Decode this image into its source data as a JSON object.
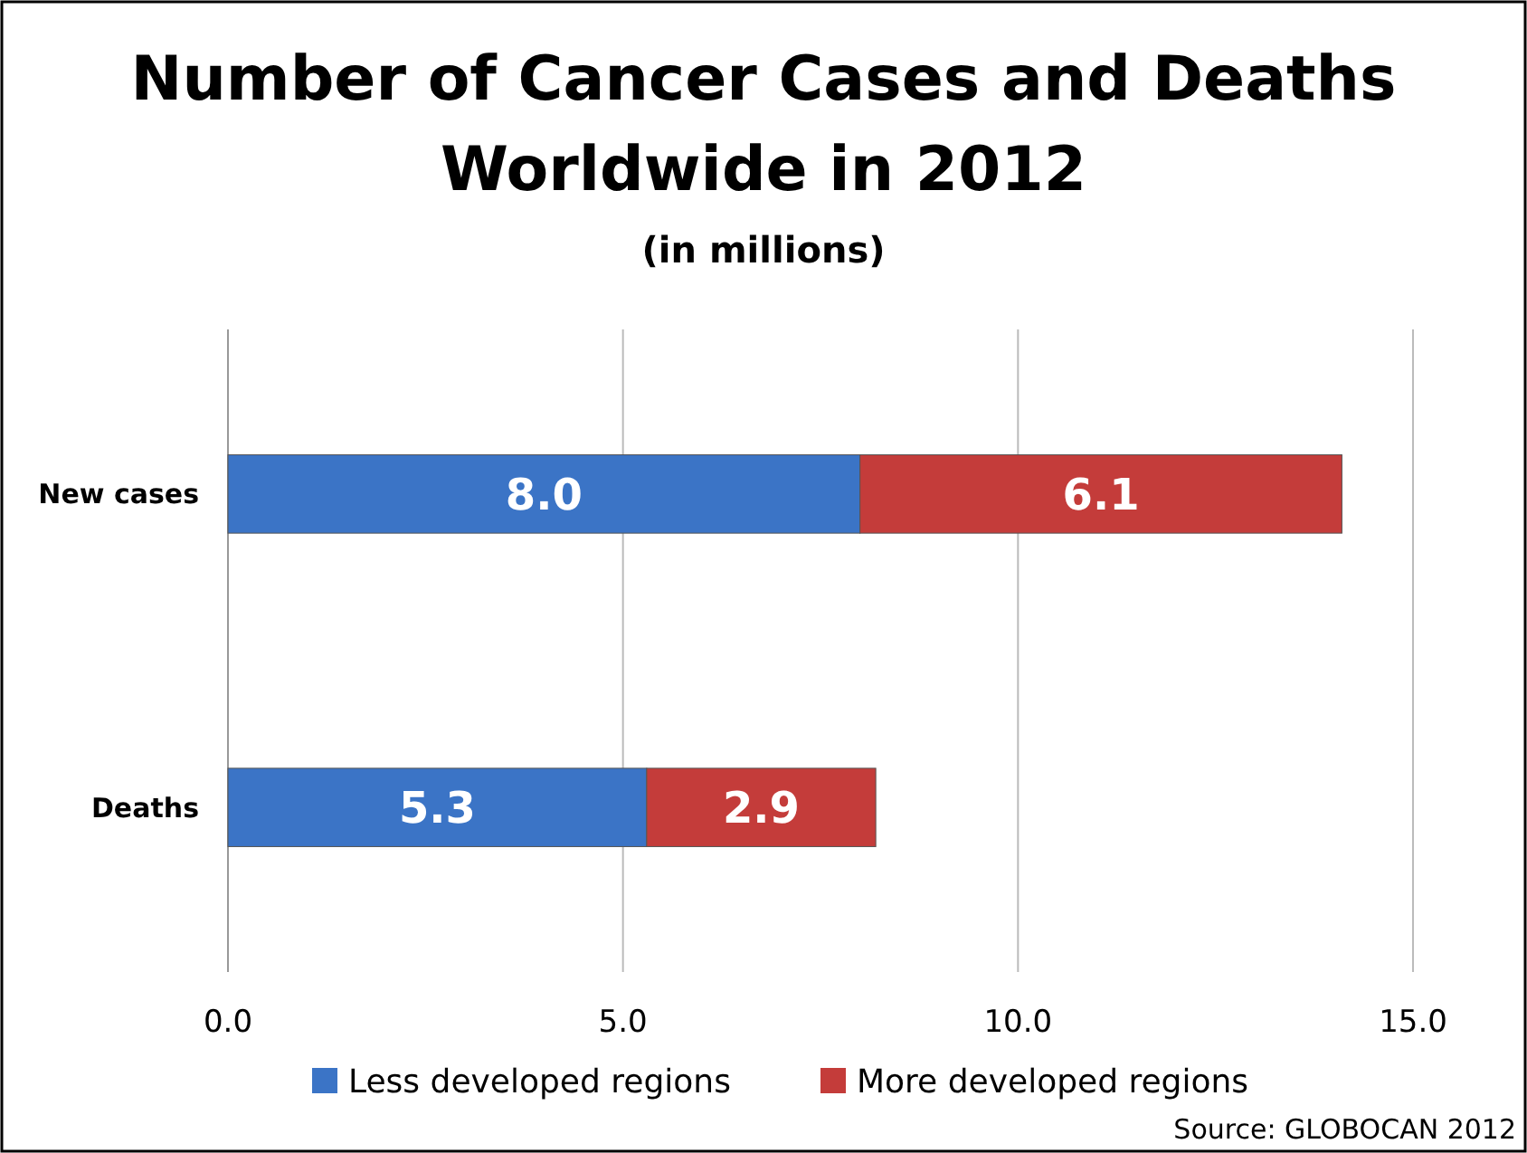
{
  "chart_data": {
    "type": "bar",
    "orientation": "horizontal",
    "stacked": true,
    "title": "Number of Cancer Cases and Deaths Worldwide in 2012",
    "subtitle": "(in millions)",
    "categories": [
      "New cases",
      "Deaths"
    ],
    "series": [
      {
        "name": "Less developed regions",
        "color": "#3b74c6",
        "values": [
          8.0,
          5.3
        ],
        "value_labels": [
          "8.0",
          "5.3"
        ]
      },
      {
        "name": "More developed regions",
        "color": "#c43c3a",
        "values": [
          6.1,
          2.9
        ],
        "value_labels": [
          "6.1",
          "2.9"
        ]
      }
    ],
    "xlim": [
      0,
      15
    ],
    "xticks": [
      {
        "value": 0,
        "label": "0.0"
      },
      {
        "value": 5,
        "label": "5.0"
      },
      {
        "value": 10,
        "label": "10.0"
      },
      {
        "value": 15,
        "label": "15.0"
      }
    ],
    "grid": "x",
    "legend": "bottom",
    "annotations": [
      "Source: GLOBOCAN 2012"
    ]
  }
}
